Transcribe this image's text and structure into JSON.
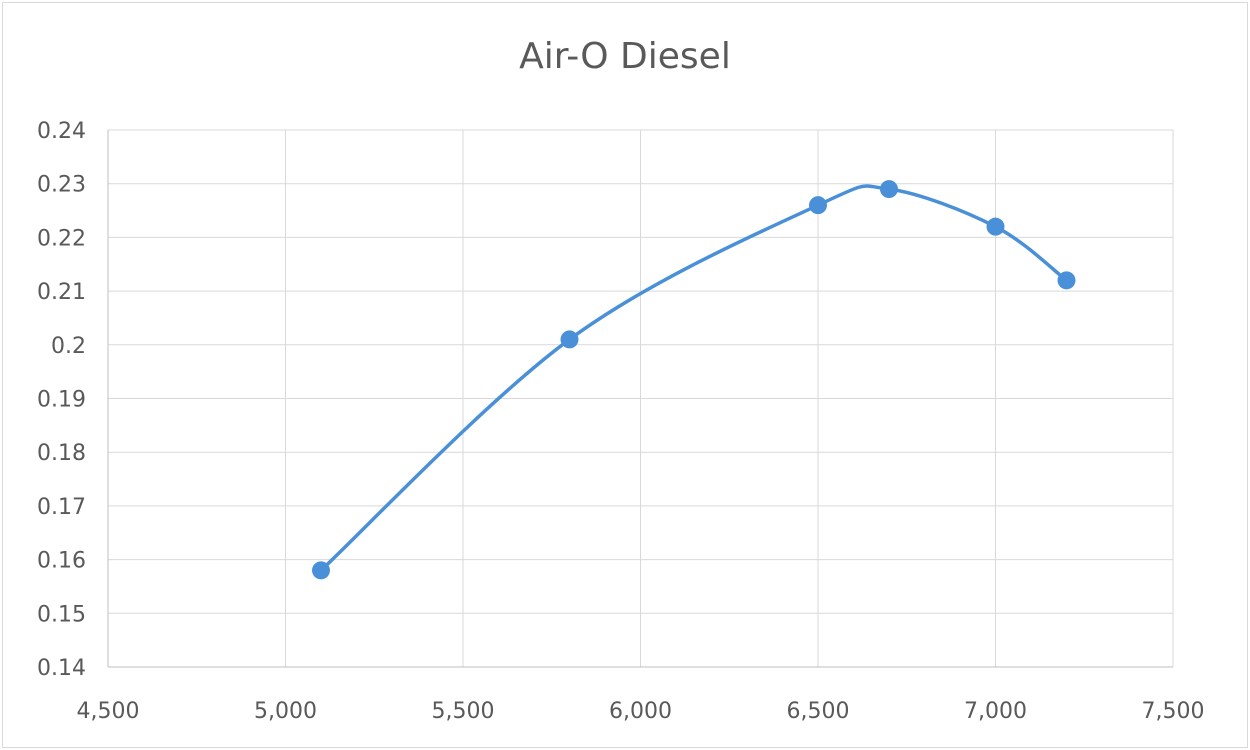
{
  "chart_data": {
    "type": "scatter",
    "title": "Air-O Diesel",
    "xlabel": "",
    "ylabel": "",
    "xlim": [
      4500,
      7500
    ],
    "ylim": [
      0.14,
      0.24
    ],
    "x_ticks": [
      4500,
      5000,
      5500,
      6000,
      6500,
      7000,
      7500
    ],
    "x_tick_labels": [
      "4,500",
      "5,000",
      "5,500",
      "6,000",
      "6,500",
      "7,000",
      "7,500"
    ],
    "y_ticks": [
      0.14,
      0.15,
      0.16,
      0.17,
      0.18,
      0.19,
      0.2,
      0.21,
      0.22,
      0.23,
      0.24
    ],
    "y_tick_labels": [
      "0.14",
      "0.15",
      "0.16",
      "0.17",
      "0.18",
      "0.19",
      "0.2",
      "0.21",
      "0.22",
      "0.23",
      "0.24"
    ],
    "grid": true,
    "smooth_line": true,
    "series": [
      {
        "x": [
          5100,
          5800,
          6500,
          6700,
          7000,
          7200
        ],
        "y": [
          0.158,
          0.201,
          0.226,
          0.229,
          0.222,
          0.212
        ],
        "color": "#4a90d9"
      }
    ]
  }
}
